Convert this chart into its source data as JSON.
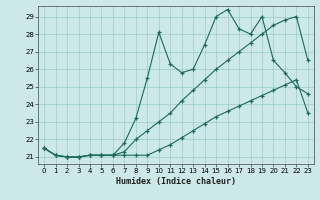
{
  "xlabel": "Humidex (Indice chaleur)",
  "bg_color": "#cce8e8",
  "grid_color": "#99cccc",
  "line_color": "#1a6b5a",
  "xlim": [
    -0.5,
    23.5
  ],
  "ylim": [
    20.6,
    29.6
  ],
  "yticks": [
    21,
    22,
    23,
    24,
    25,
    26,
    27,
    28,
    29
  ],
  "xticks": [
    0,
    1,
    2,
    3,
    4,
    5,
    6,
    7,
    8,
    9,
    10,
    11,
    12,
    13,
    14,
    15,
    16,
    17,
    18,
    19,
    20,
    21,
    22,
    23
  ],
  "line1_x": [
    0,
    1,
    2,
    3,
    4,
    5,
    6,
    7,
    8,
    9,
    10,
    11,
    12,
    13,
    14,
    15,
    16,
    17,
    18,
    19,
    20,
    21,
    22,
    23
  ],
  "line1_y": [
    21.5,
    21.1,
    21.0,
    21.0,
    21.1,
    21.1,
    21.1,
    21.1,
    21.1,
    21.1,
    21.4,
    21.7,
    22.1,
    22.5,
    22.9,
    23.3,
    23.6,
    23.9,
    24.2,
    24.5,
    24.8,
    25.1,
    25.4,
    23.5
  ],
  "line2_x": [
    0,
    1,
    2,
    3,
    4,
    5,
    6,
    7,
    8,
    9,
    10,
    11,
    12,
    13,
    14,
    15,
    16,
    17,
    18,
    19,
    20,
    21,
    22,
    23
  ],
  "line2_y": [
    21.5,
    21.1,
    21.0,
    21.0,
    21.1,
    21.1,
    21.1,
    21.8,
    23.2,
    25.5,
    28.1,
    26.3,
    25.8,
    26.0,
    27.4,
    29.0,
    29.4,
    28.3,
    28.0,
    29.0,
    26.5,
    25.8,
    25.0,
    24.6
  ],
  "line3_x": [
    0,
    1,
    2,
    3,
    4,
    5,
    6,
    7,
    8,
    9,
    10,
    11,
    12,
    13,
    14,
    15,
    16,
    17,
    18,
    19,
    20,
    21,
    22,
    23
  ],
  "line3_y": [
    21.5,
    21.1,
    21.0,
    21.0,
    21.1,
    21.1,
    21.1,
    21.3,
    22.0,
    22.5,
    23.0,
    23.5,
    24.2,
    24.8,
    25.4,
    26.0,
    26.5,
    27.0,
    27.5,
    28.0,
    28.5,
    28.8,
    29.0,
    26.5
  ]
}
